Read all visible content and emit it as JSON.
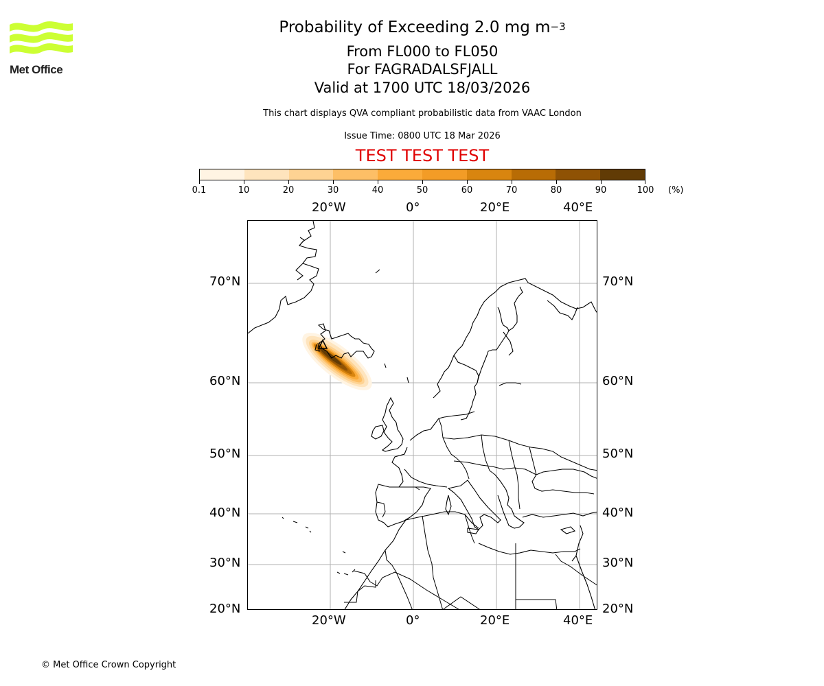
{
  "logo": {
    "text": "Met Office",
    "color": "#ccff33"
  },
  "header": {
    "title_main": "Probability of Exceeding 2.0 mg m",
    "title_exponent": "−3",
    "level_range": "From FL000 to FL050",
    "volcano": "For FAGRADALSFJALL",
    "valid_time": "Valid at 1700 UTC 18/03/2026",
    "description": "This chart displays QVA compliant probabilistic data from VAAC London",
    "issue_time": "Issue Time: 0800 UTC 18 Mar 2026",
    "test_banner": "TEST TEST TEST",
    "test_color": "#e00000"
  },
  "colorbar": {
    "unit": "(%)",
    "ticks": [
      "0.1",
      "10",
      "20",
      "30",
      "40",
      "50",
      "60",
      "70",
      "80",
      "90",
      "100"
    ],
    "colors": [
      "#fff4e3",
      "#fee4bd",
      "#fed393",
      "#fdbf66",
      "#fbab3a",
      "#f39c26",
      "#d9850f",
      "#b86c05",
      "#8f5204",
      "#613b05"
    ]
  },
  "map": {
    "lon_labels_top": [
      "20°W",
      "0°",
      "20°E",
      "40°E"
    ],
    "lon_labels_bottom": [
      "20°W",
      "0°",
      "20°E",
      "40°E"
    ],
    "lat_labels_left": [
      "70°N",
      "60°N",
      "50°N",
      "40°N",
      "30°N",
      "20°N"
    ],
    "lat_labels_right": [
      "70°N",
      "60°N",
      "50°N",
      "40°N",
      "30°N",
      "20°N"
    ],
    "gridline_color": "#b0b0b0",
    "volcano_marker": "triangle",
    "plume_direction": "southeast from southwest Iceland"
  },
  "chart_data": {
    "type": "heatmap",
    "title": "Probability of Exceeding 2.0 mg m-3, From FL000 to FL050, For FAGRADALSFJALL, Valid at 1700 UTC 18/03/2026",
    "subtitle": "This chart displays QVA compliant probabilistic data from VAAC London; Issue Time: 0800 UTC 18 Mar 2026",
    "colorbar_label": "(%)",
    "colorbar_levels": [
      0.1,
      10,
      20,
      30,
      40,
      50,
      60,
      70,
      80,
      90,
      100
    ],
    "x_ticks": [
      "20°W",
      "0°",
      "20°E",
      "40°E"
    ],
    "y_ticks": [
      "20°N",
      "30°N",
      "40°N",
      "50°N",
      "60°N",
      "70°N"
    ],
    "extent": {
      "lon": [
        -40,
        45
      ],
      "lat": [
        20,
        78
      ]
    },
    "grid": true,
    "plume": {
      "source": "Fagradalsfjall, SW Iceland (~63.9°N, 22.3°W)",
      "axis": "NW to SE, extending ~400 km south-east of source",
      "core_probability_range": "80-100",
      "edge_probability_range": "0.1-30"
    }
  },
  "footer": {
    "copyright": "© Met Office Crown Copyright"
  }
}
